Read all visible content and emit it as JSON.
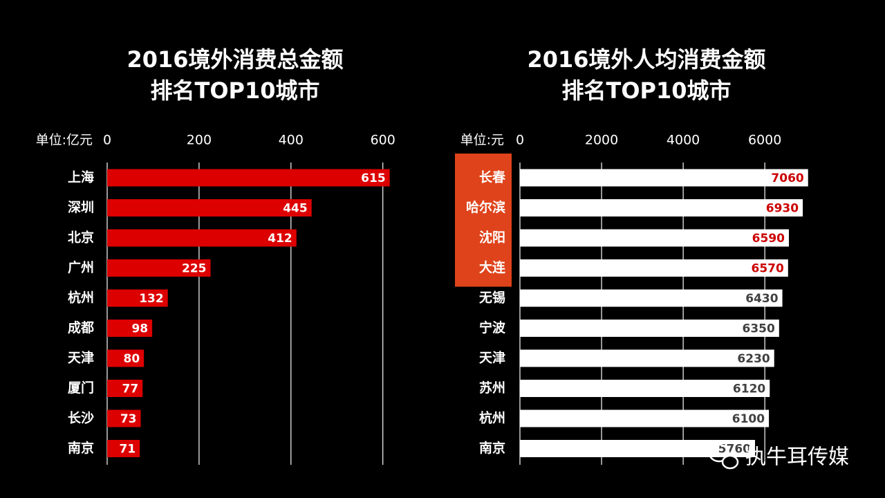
{
  "chart_data": [
    {
      "type": "bar",
      "orientation": "horizontal",
      "title": [
        "2016境外消费总金额",
        "排名TOP10城市"
      ],
      "unit": "单位:亿元",
      "categories": [
        "上海",
        "深圳",
        "北京",
        "广州",
        "杭州",
        "成都",
        "天津",
        "厦门",
        "长沙",
        "南京"
      ],
      "values": [
        615,
        445,
        412,
        225,
        132,
        98,
        80,
        77,
        73,
        71
      ],
      "color": "#dd0000",
      "label_color": "#ffffff",
      "xlim": [
        0,
        620
      ],
      "xticks": [
        0,
        200,
        400,
        600
      ],
      "grid": true
    },
    {
      "type": "bar",
      "orientation": "horizontal",
      "title": [
        "2016境外人均消费金额",
        "排名TOP10城市"
      ],
      "unit": "单位:元",
      "categories": [
        "长春",
        "哈尔滨",
        "沈阳",
        "大连",
        "无锡",
        "宁波",
        "天津",
        "苏州",
        "杭州",
        "南京"
      ],
      "values": [
        7060,
        6930,
        6590,
        6570,
        6430,
        6350,
        6230,
        6120,
        6100,
        5760
      ],
      "color": "#ffffff",
      "label_color": "#404040",
      "highlight": [
        true,
        true,
        true,
        true,
        false,
        false,
        false,
        false,
        false,
        false
      ],
      "highlight_color": "#df431b",
      "highlight_label_color": "#cc0000",
      "xlim": [
        0,
        7200
      ],
      "xticks": [
        0,
        2000,
        4000,
        6000
      ],
      "grid": true
    }
  ],
  "watermark": "执牛耳传媒"
}
